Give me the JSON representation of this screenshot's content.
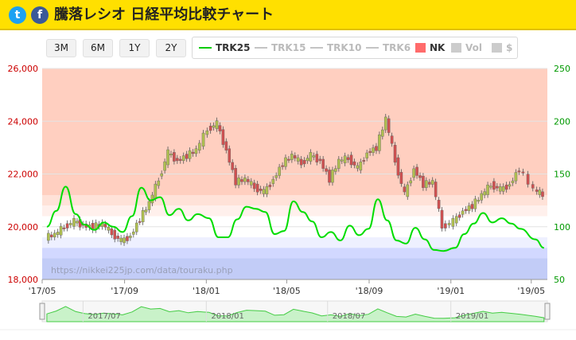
{
  "header": {
    "title": "騰落レシオ 日経平均比較チャート",
    "twitter_glyph": "t",
    "facebook_glyph": "f",
    "twitter_icon": "twitter-icon",
    "facebook_icon": "facebook-icon",
    "bg_color": "#ffe000"
  },
  "range_buttons": [
    "3M",
    "6M",
    "1Y",
    "2Y"
  ],
  "legend": [
    {
      "label": "TRK25",
      "type": "line",
      "color": "#00cc00",
      "active": true
    },
    {
      "label": "TRK15",
      "type": "line",
      "color": "#bbbbbb",
      "active": false
    },
    {
      "label": "TRK10",
      "type": "line",
      "color": "#bbbbbb",
      "active": false
    },
    {
      "label": "TRK6",
      "type": "line",
      "color": "#bbbbbb",
      "active": false
    },
    {
      "label": "NK",
      "type": "box",
      "color": "#ff6b6b",
      "active": true
    },
    {
      "label": "Vol",
      "type": "box",
      "color": "#cccccc",
      "active": false
    },
    {
      "label": "$",
      "type": "box",
      "color": "#cccccc",
      "active": false
    }
  ],
  "watermark": "https://nikkei225jp.com/data/touraku.php",
  "chart_data": {
    "type": "line",
    "x_ticks": [
      "'17/05",
      "'17/09",
      "'18/01",
      "'18/05",
      "'18/09",
      "'19/01",
      "'19/05"
    ],
    "x_range": [
      "2017-05",
      "2019-05"
    ],
    "left_axis": {
      "ticks": [
        "18,000",
        "20,000",
        "22,000",
        "24,000",
        "26,000"
      ],
      "range": [
        18000,
        26000
      ],
      "color": "#cc0000"
    },
    "right_axis": {
      "ticks": [
        "50",
        "100",
        "150",
        "200",
        "250"
      ],
      "range": [
        50,
        250
      ],
      "color": "#009900"
    },
    "zones": [
      {
        "from": 130,
        "to": 250,
        "color": "#ffcfc0"
      },
      {
        "from": 120,
        "to": 130,
        "color": "#ffe2d8"
      },
      {
        "from": 110,
        "to": 120,
        "color": "#fff0ec"
      },
      {
        "from": 80,
        "to": 90,
        "color": "#eef0ff"
      },
      {
        "from": 70,
        "to": 80,
        "color": "#d2d8ff"
      },
      {
        "from": 50,
        "to": 70,
        "color": "#c2ccf7"
      }
    ],
    "series": [
      {
        "name": "TRK25",
        "axis": "right",
        "color": "#00dd00",
        "x": [
          "2017-05-08",
          "2017-05-22",
          "2017-06-05",
          "2017-06-20",
          "2017-07-03",
          "2017-07-18",
          "2017-08-01",
          "2017-08-15",
          "2017-08-29",
          "2017-09-12",
          "2017-09-26",
          "2017-10-10",
          "2017-10-24",
          "2017-11-07",
          "2017-11-21",
          "2017-12-05",
          "2017-12-19",
          "2018-01-05",
          "2018-01-19",
          "2018-02-02",
          "2018-02-16",
          "2018-03-02",
          "2018-03-16",
          "2018-03-30",
          "2018-04-13",
          "2018-04-27",
          "2018-05-11",
          "2018-05-25",
          "2018-06-08",
          "2018-06-22",
          "2018-07-06",
          "2018-07-20",
          "2018-08-03",
          "2018-08-17",
          "2018-08-31",
          "2018-09-14",
          "2018-09-28",
          "2018-10-12",
          "2018-10-26",
          "2018-11-09",
          "2018-11-23",
          "2018-12-07",
          "2018-12-21",
          "2019-01-07",
          "2019-01-21",
          "2019-02-04",
          "2019-02-18",
          "2019-03-04",
          "2019-03-18",
          "2019-04-01",
          "2019-04-15",
          "2019-05-07",
          "2019-05-20"
        ],
        "values": [
          100,
          115,
          138,
          112,
          102,
          97,
          104,
          100,
          95,
          110,
          137,
          125,
          128,
          111,
          117,
          106,
          112,
          108,
          90,
          90,
          107,
          119,
          117,
          114,
          93,
          96,
          124,
          114,
          105,
          90,
          95,
          87,
          101,
          92,
          98,
          126,
          106,
          87,
          84,
          99,
          88,
          78,
          77,
          80,
          93,
          103,
          113,
          104,
          108,
          103,
          98,
          88,
          80
        ]
      },
      {
        "name": "NK",
        "axis": "left",
        "color": "#cc3333",
        "x": [
          "2017-05-08",
          "2017-05-22",
          "2017-06-05",
          "2017-06-20",
          "2017-07-03",
          "2017-07-18",
          "2017-08-01",
          "2017-08-15",
          "2017-08-29",
          "2017-09-12",
          "2017-09-26",
          "2017-10-10",
          "2017-10-24",
          "2017-11-07",
          "2017-11-21",
          "2017-12-05",
          "2017-12-19",
          "2018-01-05",
          "2018-01-19",
          "2018-02-02",
          "2018-02-16",
          "2018-03-02",
          "2018-03-16",
          "2018-03-30",
          "2018-04-13",
          "2018-04-27",
          "2018-05-11",
          "2018-05-25",
          "2018-06-08",
          "2018-06-22",
          "2018-07-06",
          "2018-07-20",
          "2018-08-03",
          "2018-08-17",
          "2018-08-31",
          "2018-09-14",
          "2018-09-28",
          "2018-10-12",
          "2018-10-26",
          "2018-11-09",
          "2018-11-23",
          "2018-12-07",
          "2018-12-21",
          "2019-01-07",
          "2019-01-21",
          "2019-02-04",
          "2019-02-18",
          "2019-03-04",
          "2019-03-18",
          "2019-04-01",
          "2019-04-15",
          "2019-05-07",
          "2019-05-20"
        ],
        "values": [
          19600,
          19700,
          20000,
          20200,
          20050,
          20000,
          20100,
          19750,
          19450,
          19650,
          20300,
          20900,
          21800,
          22800,
          22500,
          22700,
          22900,
          23700,
          23900,
          22900,
          21700,
          21800,
          21500,
          21300,
          21800,
          22400,
          22700,
          22400,
          22700,
          22500,
          21800,
          22500,
          22600,
          22200,
          22800,
          23000,
          24100,
          22500,
          21200,
          22200,
          21600,
          21700,
          20000,
          20200,
          20600,
          20800,
          21200,
          21600,
          21400,
          21600,
          22200,
          21400,
          21200
        ]
      }
    ]
  },
  "navigator": {
    "labels": [
      "2017/07",
      "2018/01",
      "2018/07",
      "2019/01"
    ]
  }
}
